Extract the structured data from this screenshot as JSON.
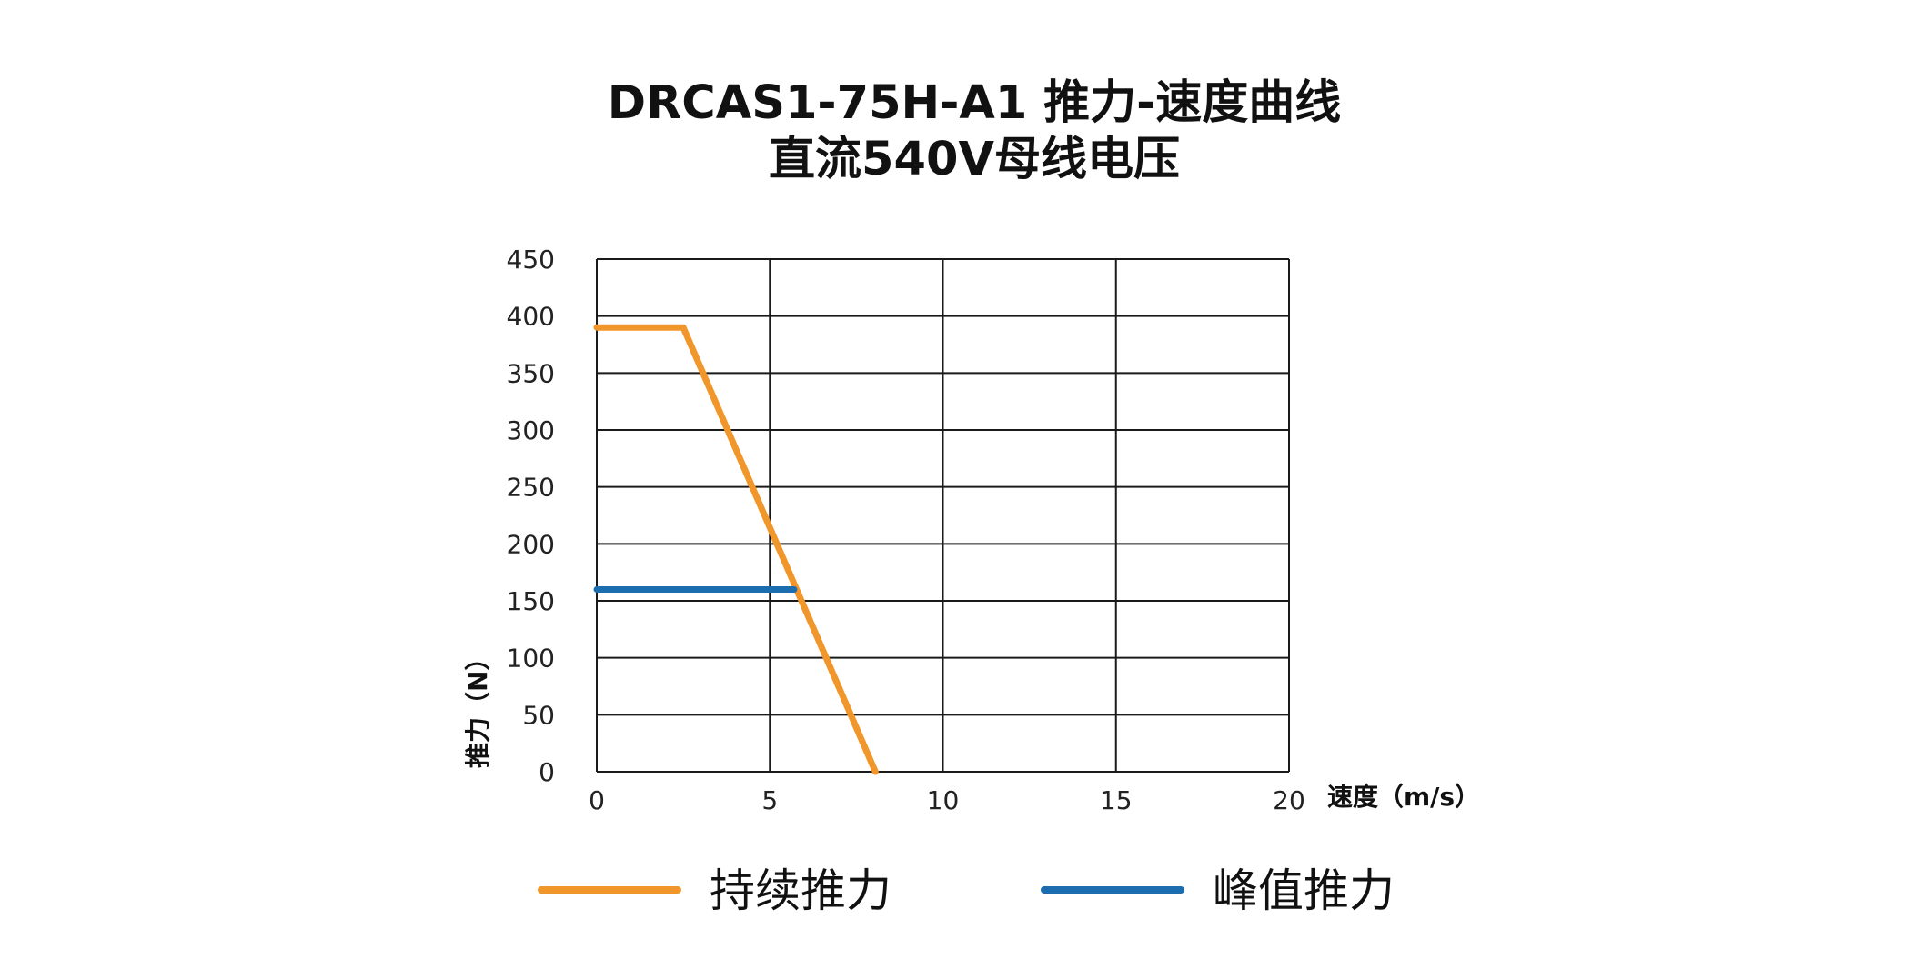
{
  "chart_data": {
    "type": "line",
    "title": [
      "DRCAS1-75H-A1 推力-速度曲线",
      "直流540V母线电压"
    ],
    "xlabel": "速度（m/s）",
    "ylabel": "推力（N）",
    "xlim": [
      0,
      20
    ],
    "ylim": [
      0,
      450
    ],
    "xticks": [
      0,
      5,
      10,
      15,
      20
    ],
    "yticks": [
      0,
      50,
      100,
      150,
      200,
      250,
      300,
      350,
      400,
      450
    ],
    "grid": true,
    "legend_position": "bottom",
    "series": [
      {
        "name": "持续推力",
        "color": "#F0962A",
        "points": [
          [
            0,
            390
          ],
          [
            2.5,
            390
          ],
          [
            8.05,
            0
          ]
        ]
      },
      {
        "name": "峰值推力",
        "color": "#1C6CB0",
        "points": [
          [
            0,
            160
          ],
          [
            5.7,
            160
          ]
        ]
      }
    ]
  }
}
